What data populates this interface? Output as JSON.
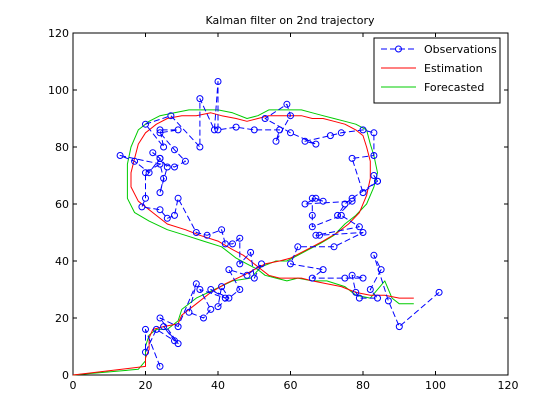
{
  "window_title": "Kalman filter on 2nd trajectory",
  "chart_data": {
    "type": "line",
    "title": "Kalman filter on 2nd trajectory",
    "xlabel": "",
    "ylabel": "",
    "xlim": [
      0,
      120
    ],
    "ylim": [
      0,
      120
    ],
    "x_ticks": [
      "0",
      "20",
      "40",
      "60",
      "80",
      "100",
      "120"
    ],
    "y_ticks": [
      "0",
      "20",
      "40",
      "60",
      "80",
      "100",
      "120"
    ],
    "grid": false,
    "legend_position": "top-right",
    "series": [
      {
        "name": "Observations",
        "color": "#0000ff",
        "line_style": "dashed",
        "marker": "circle",
        "points": [
          [
            24,
            3
          ],
          [
            20,
            16
          ],
          [
            20,
            8
          ],
          [
            23,
            16
          ],
          [
            28,
            12
          ],
          [
            25,
            17
          ],
          [
            29,
            11
          ],
          [
            24,
            20
          ],
          [
            29,
            17
          ],
          [
            34,
            32
          ],
          [
            32,
            22
          ],
          [
            36,
            20
          ],
          [
            38,
            23
          ],
          [
            35,
            30
          ],
          [
            42,
            27
          ],
          [
            38,
            30
          ],
          [
            43,
            27
          ],
          [
            41,
            31
          ],
          [
            40,
            24
          ],
          [
            46,
            30
          ],
          [
            43,
            37
          ],
          [
            48,
            35
          ],
          [
            52,
            39
          ],
          [
            50,
            34
          ],
          [
            49,
            43
          ],
          [
            46,
            39
          ],
          [
            46,
            48
          ],
          [
            44,
            46
          ],
          [
            42,
            46
          ],
          [
            41,
            51
          ],
          [
            37,
            49
          ],
          [
            34,
            50
          ],
          [
            29,
            62
          ],
          [
            28,
            56
          ],
          [
            26,
            55
          ],
          [
            24,
            58
          ],
          [
            19,
            59
          ],
          [
            20,
            62
          ],
          [
            20,
            71
          ],
          [
            24,
            74
          ],
          [
            25,
            69
          ],
          [
            24,
            64
          ],
          [
            26,
            73
          ],
          [
            24,
            76
          ],
          [
            22,
            78
          ],
          [
            24,
            76
          ],
          [
            21,
            71
          ],
          [
            17,
            75
          ],
          [
            13,
            77
          ],
          [
            28,
            73
          ],
          [
            31,
            75
          ],
          [
            28,
            79
          ],
          [
            24,
            85
          ],
          [
            29,
            86
          ],
          [
            24,
            86
          ],
          [
            25,
            80
          ],
          [
            20,
            88
          ],
          [
            27,
            91
          ],
          [
            35,
            80
          ],
          [
            35,
            97
          ],
          [
            39,
            86
          ],
          [
            40,
            103
          ],
          [
            40,
            86
          ],
          [
            45,
            87
          ],
          [
            50,
            86
          ],
          [
            57,
            86
          ],
          [
            56,
            82
          ],
          [
            60,
            91
          ],
          [
            59,
            95
          ],
          [
            53,
            90
          ],
          [
            60,
            85
          ],
          [
            67,
            81
          ],
          [
            64,
            82
          ],
          [
            71,
            84
          ],
          [
            74,
            85
          ],
          [
            80,
            86
          ],
          [
            83,
            85
          ],
          [
            83,
            77
          ],
          [
            77,
            76
          ],
          [
            80,
            64
          ],
          [
            84,
            68
          ],
          [
            83,
            70
          ],
          [
            84,
            68
          ],
          [
            77,
            62
          ],
          [
            75,
            60
          ],
          [
            73,
            56
          ],
          [
            77,
            61
          ],
          [
            64,
            60
          ],
          [
            67,
            62
          ],
          [
            69,
            61
          ],
          [
            66,
            62
          ],
          [
            66,
            56
          ],
          [
            66,
            52
          ],
          [
            74,
            56
          ],
          [
            79,
            52
          ],
          [
            67,
            49
          ],
          [
            68,
            49
          ],
          [
            80,
            50
          ],
          [
            72,
            45
          ],
          [
            62,
            45
          ],
          [
            60,
            39
          ],
          [
            69,
            37
          ],
          [
            66,
            34
          ],
          [
            75,
            34
          ],
          [
            80,
            34
          ],
          [
            77,
            35
          ],
          [
            78,
            29
          ],
          [
            79,
            27
          ],
          [
            84,
            27
          ],
          [
            82,
            30
          ],
          [
            85,
            37
          ],
          [
            83,
            42
          ],
          [
            87,
            26
          ],
          [
            90,
            17
          ],
          [
            101,
            29
          ]
        ]
      },
      {
        "name": "Estimation",
        "color": "#ff0000",
        "line_style": "solid",
        "marker": "none",
        "points": [
          [
            0,
            0
          ],
          [
            20,
            3
          ],
          [
            20,
            6
          ],
          [
            21,
            9
          ],
          [
            21,
            13
          ],
          [
            22,
            16
          ],
          [
            25,
            17
          ],
          [
            29,
            18
          ],
          [
            30,
            21
          ],
          [
            34,
            25
          ],
          [
            38,
            29
          ],
          [
            42,
            32
          ],
          [
            47,
            35
          ],
          [
            50,
            37
          ],
          [
            53,
            39
          ],
          [
            57,
            40
          ],
          [
            60,
            41
          ],
          [
            63,
            43
          ],
          [
            66,
            45
          ],
          [
            69,
            47
          ],
          [
            73,
            50
          ],
          [
            76,
            53
          ],
          [
            79,
            57
          ],
          [
            81,
            63
          ],
          [
            82,
            69
          ],
          [
            82,
            75
          ],
          [
            81,
            80
          ],
          [
            80,
            84
          ],
          [
            78,
            86
          ],
          [
            75,
            88
          ],
          [
            72,
            89
          ],
          [
            69,
            90
          ],
          [
            66,
            90
          ],
          [
            63,
            91
          ],
          [
            60,
            91
          ],
          [
            57,
            91
          ],
          [
            54,
            91
          ],
          [
            51,
            90
          ],
          [
            48,
            89
          ],
          [
            45,
            90
          ],
          [
            41,
            91
          ],
          [
            38,
            92
          ],
          [
            34,
            91
          ],
          [
            30,
            91
          ],
          [
            26,
            90
          ],
          [
            23,
            88
          ],
          [
            20,
            85
          ],
          [
            18,
            81
          ],
          [
            17,
            76
          ],
          [
            16,
            71
          ],
          [
            16,
            66
          ],
          [
            18,
            61
          ],
          [
            22,
            57
          ],
          [
            26,
            53
          ],
          [
            31,
            51
          ],
          [
            35,
            49
          ],
          [
            40,
            47
          ],
          [
            44,
            44
          ],
          [
            47,
            42
          ],
          [
            49,
            40
          ],
          [
            52,
            37
          ],
          [
            54,
            35
          ],
          [
            57,
            34
          ],
          [
            60,
            34
          ],
          [
            63,
            34
          ],
          [
            66,
            33
          ],
          [
            70,
            32
          ],
          [
            74,
            31
          ],
          [
            78,
            29
          ],
          [
            82,
            28
          ],
          [
            86,
            28
          ],
          [
            90,
            27
          ],
          [
            94,
            27
          ]
        ]
      },
      {
        "name": "Forecasted",
        "color": "#00cc00",
        "line_style": "solid",
        "marker": "none",
        "points": [
          [
            0,
            0
          ],
          [
            18,
            2
          ],
          [
            20,
            5
          ],
          [
            20,
            10
          ],
          [
            21,
            14
          ],
          [
            23,
            16
          ],
          [
            26,
            16
          ],
          [
            29,
            19
          ],
          [
            30,
            23
          ],
          [
            34,
            27
          ],
          [
            39,
            30
          ],
          [
            44,
            33
          ],
          [
            49,
            34
          ],
          [
            52,
            38
          ],
          [
            56,
            40
          ],
          [
            59,
            40
          ],
          [
            62,
            42
          ],
          [
            65,
            44
          ],
          [
            68,
            46
          ],
          [
            72,
            49
          ],
          [
            75,
            53
          ],
          [
            78,
            56
          ],
          [
            81,
            60
          ],
          [
            83,
            66
          ],
          [
            84,
            71
          ],
          [
            83,
            77
          ],
          [
            82,
            81
          ],
          [
            81,
            86
          ],
          [
            78,
            88
          ],
          [
            75,
            89
          ],
          [
            72,
            90
          ],
          [
            69,
            91
          ],
          [
            66,
            92
          ],
          [
            63,
            93
          ],
          [
            60,
            93
          ],
          [
            57,
            93
          ],
          [
            54,
            93
          ],
          [
            51,
            91
          ],
          [
            48,
            90
          ],
          [
            44,
            92
          ],
          [
            40,
            93
          ],
          [
            36,
            93
          ],
          [
            32,
            93
          ],
          [
            28,
            92
          ],
          [
            24,
            91
          ],
          [
            21,
            89
          ],
          [
            18,
            86
          ],
          [
            16,
            80
          ],
          [
            15,
            74
          ],
          [
            15,
            68
          ],
          [
            15,
            62
          ],
          [
            17,
            57
          ],
          [
            21,
            54
          ],
          [
            26,
            51
          ],
          [
            31,
            49
          ],
          [
            36,
            47
          ],
          [
            41,
            45
          ],
          [
            45,
            41
          ],
          [
            48,
            39
          ],
          [
            51,
            37
          ],
          [
            53,
            35
          ],
          [
            56,
            34
          ],
          [
            59,
            33
          ],
          [
            62,
            34
          ],
          [
            66,
            33
          ],
          [
            70,
            33
          ],
          [
            75,
            31
          ],
          [
            78,
            28
          ],
          [
            82,
            27
          ],
          [
            86,
            33
          ],
          [
            88,
            27
          ],
          [
            90,
            25
          ],
          [
            94,
            25
          ]
        ]
      }
    ]
  }
}
